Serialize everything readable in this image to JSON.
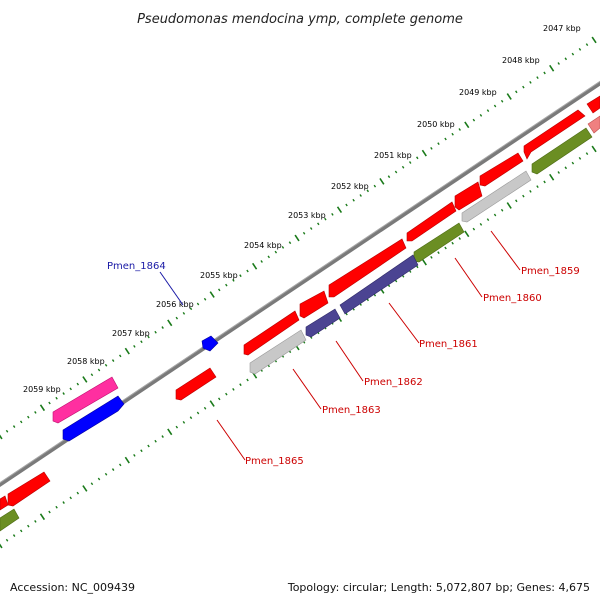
{
  "title": "Pseudomonas mendocina ymp, complete genome",
  "footer": {
    "accession": "Accession: NC_009439",
    "summary": "Topology: circular; Length: 5,072,807 bp; Genes: 4,675"
  },
  "ruler": [
    "2047 kbp",
    "2048 kbp",
    "2049 kbp",
    "2050 kbp",
    "2051 kbp",
    "2052 kbp",
    "2053 kbp",
    "2054 kbp",
    "2055 kbp",
    "2056 kbp",
    "2057 kbp",
    "2058 kbp",
    "2059 kbp"
  ],
  "gene_labels": [
    "Pmen_1859",
    "Pmen_1860",
    "Pmen_1861",
    "Pmen_1862",
    "Pmen_1863",
    "Pmen_1864",
    "Pmen_1865"
  ],
  "colors": {
    "cds": "#ff0000",
    "cds_dark": "#b80000",
    "backbone": "#808080",
    "ruler": "#1a7a1a",
    "label_red": "#cc0000",
    "label_blue": "#1a1aa6",
    "magenta": "#ff2fa0",
    "blue": "#0000ff",
    "olive": "#6b8e23",
    "slate": "#4b4492",
    "grey": "#c8c8c8",
    "pink": "#f08080"
  }
}
